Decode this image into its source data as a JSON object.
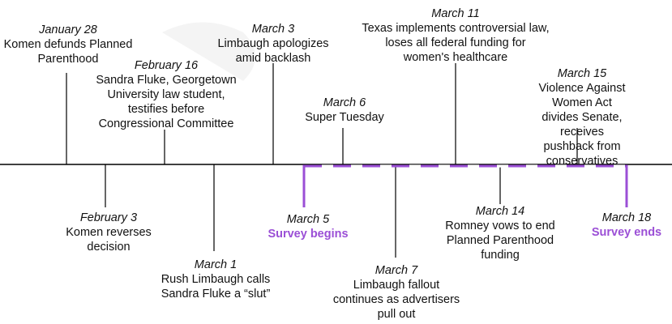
{
  "colors": {
    "axis": "#000000",
    "survey": "#9b4fd6"
  },
  "events_above": [
    {
      "id": "jan28",
      "date": "January 28",
      "desc": "Komen defunds Planned\nParenthood"
    },
    {
      "id": "feb16",
      "date": "February 16",
      "desc": "Sandra Fluke, Georgetown\nUniversity law student,\ntestifies before\nCongressional Committee"
    },
    {
      "id": "mar3",
      "date": "March 3",
      "desc": "Limbaugh apologizes\namid backlash"
    },
    {
      "id": "mar6",
      "date": "March 6",
      "desc": "Super Tuesday"
    },
    {
      "id": "mar11",
      "date": "March 11",
      "desc": "Texas implements controversial law,\nloses all federal funding for\nwomen's healthcare"
    },
    {
      "id": "mar15",
      "date": "March 15",
      "desc": "Violence Against Women Act\ndivides Senate, receives\npushback from conservatives"
    }
  ],
  "events_below": [
    {
      "id": "feb3",
      "date": "February 3",
      "desc": "Komen reverses\ndecision"
    },
    {
      "id": "mar1",
      "date": "March 1",
      "desc": "Rush Limbaugh calls\nSandra Fluke a “slut”"
    },
    {
      "id": "mar7",
      "date": "March 7",
      "desc": "Limbaugh fallout\ncontinues as advertisers\npull out"
    },
    {
      "id": "mar14",
      "date": "March 14",
      "desc": "Romney vows to end\nPlanned Parenthood\nfunding"
    }
  ],
  "survey": {
    "start": {
      "date": "March 5",
      "note": "Survey begins"
    },
    "end": {
      "date": "March 18",
      "note": "Survey ends"
    }
  }
}
